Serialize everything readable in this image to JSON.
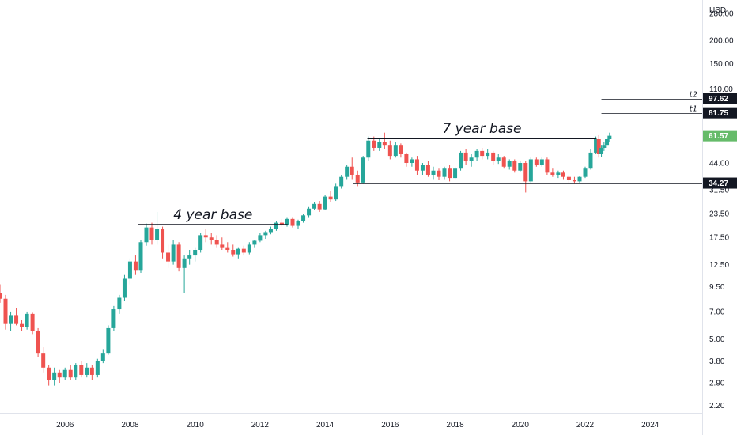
{
  "chart_data": {
    "type": "candlestick",
    "currency": "USD",
    "scale": "log",
    "ylim": [
      2.0,
      330.0
    ],
    "xlim": [
      2004.0,
      2025.6
    ],
    "y_ticks": [
      {
        "label": "280.00",
        "value": 280
      },
      {
        "label": "200.00",
        "value": 200
      },
      {
        "label": "150.00",
        "value": 150
      },
      {
        "label": "110.00",
        "value": 110
      },
      {
        "label": "44.00",
        "value": 44
      },
      {
        "label": "31.50",
        "value": 31.5
      },
      {
        "label": "23.50",
        "value": 23.5
      },
      {
        "label": "17.50",
        "value": 17.5
      },
      {
        "label": "12.50",
        "value": 12.5
      },
      {
        "label": "9.50",
        "value": 9.5
      },
      {
        "label": "7.00",
        "value": 7.0
      },
      {
        "label": "5.00",
        "value": 5.0
      },
      {
        "label": "3.80",
        "value": 3.8
      },
      {
        "label": "2.90",
        "value": 2.9
      },
      {
        "label": "2.20",
        "value": 2.2
      }
    ],
    "x_ticks": [
      {
        "label": "2006",
        "value": 2006
      },
      {
        "label": "2008",
        "value": 2008
      },
      {
        "label": "2010",
        "value": 2010
      },
      {
        "label": "2012",
        "value": 2012
      },
      {
        "label": "2014",
        "value": 2014
      },
      {
        "label": "2016",
        "value": 2016
      },
      {
        "label": "2018",
        "value": 2018
      },
      {
        "label": "2020",
        "value": 2020
      },
      {
        "label": "2022",
        "value": 2022
      },
      {
        "label": "2024",
        "value": 2024
      }
    ],
    "colors": {
      "up": "#26a69a",
      "down": "#ef5350",
      "last_price_tag": "#66bb6a",
      "level_tag": "#131722"
    },
    "price_tags": [
      {
        "label": "97.62",
        "value": 97.62,
        "kind": "level"
      },
      {
        "label": "81.75",
        "value": 81.75,
        "kind": "level"
      },
      {
        "label": "61.57",
        "value": 61.57,
        "kind": "last"
      },
      {
        "label": "34.27",
        "value": 34.27,
        "kind": "level"
      }
    ],
    "levels": [
      {
        "name": "t2",
        "value": 97.62,
        "x_start": 2022.5,
        "line": "thin"
      },
      {
        "name": "t1",
        "value": 81.75,
        "x_start": 2022.5,
        "line": "thin"
      },
      {
        "name": "",
        "value": 34.27,
        "x_start": 2014.85,
        "line": "thin"
      }
    ],
    "bases": [
      {
        "label": "4 year base",
        "value": 20.5,
        "x_start": 2008.25,
        "x_end": 2012.85
      },
      {
        "label": "7 year base",
        "value": 59.5,
        "x_start": 2015.3,
        "x_end": 2022.35
      }
    ],
    "candles": [
      {
        "t": 2004.0,
        "o": 8.8,
        "h": 9.8,
        "l": 7.8,
        "c": 8.2
      },
      {
        "t": 2004.17,
        "o": 8.2,
        "h": 8.6,
        "l": 5.6,
        "c": 6.0
      },
      {
        "t": 2004.33,
        "o": 6.0,
        "h": 7.0,
        "l": 5.5,
        "c": 6.7
      },
      {
        "t": 2004.5,
        "o": 6.7,
        "h": 7.3,
        "l": 5.9,
        "c": 6.0
      },
      {
        "t": 2004.67,
        "o": 6.0,
        "h": 6.3,
        "l": 5.5,
        "c": 5.8
      },
      {
        "t": 2004.83,
        "o": 5.8,
        "h": 7.0,
        "l": 5.6,
        "c": 6.8
      },
      {
        "t": 2005.0,
        "o": 6.8,
        "h": 6.9,
        "l": 5.3,
        "c": 5.5
      },
      {
        "t": 2005.17,
        "o": 5.5,
        "h": 5.7,
        "l": 4.0,
        "c": 4.2
      },
      {
        "t": 2005.33,
        "o": 4.2,
        "h": 4.5,
        "l": 3.3,
        "c": 3.5
      },
      {
        "t": 2005.5,
        "o": 3.5,
        "h": 3.6,
        "l": 2.8,
        "c": 3.0
      },
      {
        "t": 2005.67,
        "o": 3.0,
        "h": 3.5,
        "l": 2.8,
        "c": 3.3
      },
      {
        "t": 2005.83,
        "o": 3.3,
        "h": 3.4,
        "l": 2.9,
        "c": 3.1
      },
      {
        "t": 2006.0,
        "o": 3.1,
        "h": 3.5,
        "l": 3.0,
        "c": 3.4
      },
      {
        "t": 2006.17,
        "o": 3.4,
        "h": 3.6,
        "l": 3.0,
        "c": 3.1
      },
      {
        "t": 2006.33,
        "o": 3.1,
        "h": 3.7,
        "l": 3.0,
        "c": 3.6
      },
      {
        "t": 2006.5,
        "o": 3.6,
        "h": 3.8,
        "l": 3.1,
        "c": 3.2
      },
      {
        "t": 2006.67,
        "o": 3.2,
        "h": 3.7,
        "l": 3.1,
        "c": 3.5
      },
      {
        "t": 2006.83,
        "o": 3.5,
        "h": 3.6,
        "l": 3.0,
        "c": 3.2
      },
      {
        "t": 2007.0,
        "o": 3.2,
        "h": 3.9,
        "l": 3.1,
        "c": 3.8
      },
      {
        "t": 2007.17,
        "o": 3.8,
        "h": 4.4,
        "l": 3.7,
        "c": 4.2
      },
      {
        "t": 2007.33,
        "o": 4.2,
        "h": 5.9,
        "l": 4.1,
        "c": 5.7
      },
      {
        "t": 2007.5,
        "o": 5.7,
        "h": 7.5,
        "l": 5.5,
        "c": 7.2
      },
      {
        "t": 2007.67,
        "o": 7.2,
        "h": 8.6,
        "l": 6.8,
        "c": 8.3
      },
      {
        "t": 2007.83,
        "o": 8.3,
        "h": 11.0,
        "l": 8.0,
        "c": 10.5
      },
      {
        "t": 2008.0,
        "o": 10.5,
        "h": 13.5,
        "l": 9.8,
        "c": 13.0
      },
      {
        "t": 2008.17,
        "o": 13.0,
        "h": 14.0,
        "l": 11.0,
        "c": 11.6
      },
      {
        "t": 2008.33,
        "o": 11.6,
        "h": 17.0,
        "l": 11.3,
        "c": 16.5
      },
      {
        "t": 2008.5,
        "o": 16.5,
        "h": 20.8,
        "l": 15.8,
        "c": 19.8
      },
      {
        "t": 2008.67,
        "o": 19.8,
        "h": 21.0,
        "l": 16.0,
        "c": 17.0
      },
      {
        "t": 2008.83,
        "o": 17.0,
        "h": 24.0,
        "l": 16.0,
        "c": 19.5
      },
      {
        "t": 2009.0,
        "o": 19.5,
        "h": 20.0,
        "l": 13.5,
        "c": 14.5
      },
      {
        "t": 2009.17,
        "o": 14.5,
        "h": 16.0,
        "l": 12.0,
        "c": 13.0
      },
      {
        "t": 2009.33,
        "o": 13.0,
        "h": 17.0,
        "l": 12.5,
        "c": 16.0
      },
      {
        "t": 2009.5,
        "o": 16.0,
        "h": 16.5,
        "l": 11.5,
        "c": 12.0
      },
      {
        "t": 2009.67,
        "o": 12.0,
        "h": 14.0,
        "l": 8.8,
        "c": 13.5
      },
      {
        "t": 2009.83,
        "o": 13.5,
        "h": 15.0,
        "l": 12.5,
        "c": 14.0
      },
      {
        "t": 2010.0,
        "o": 14.0,
        "h": 15.5,
        "l": 13.0,
        "c": 15.0
      },
      {
        "t": 2010.17,
        "o": 15.0,
        "h": 18.5,
        "l": 14.5,
        "c": 18.0
      },
      {
        "t": 2010.33,
        "o": 18.0,
        "h": 19.5,
        "l": 16.5,
        "c": 17.5
      },
      {
        "t": 2010.5,
        "o": 17.5,
        "h": 18.5,
        "l": 16.0,
        "c": 17.0
      },
      {
        "t": 2010.67,
        "o": 17.0,
        "h": 18.0,
        "l": 15.5,
        "c": 16.0
      },
      {
        "t": 2010.83,
        "o": 16.0,
        "h": 17.5,
        "l": 15.0,
        "c": 15.5
      },
      {
        "t": 2011.0,
        "o": 15.5,
        "h": 16.5,
        "l": 14.5,
        "c": 15.0
      },
      {
        "t": 2011.17,
        "o": 15.0,
        "h": 16.0,
        "l": 13.8,
        "c": 14.2
      },
      {
        "t": 2011.33,
        "o": 14.2,
        "h": 15.5,
        "l": 13.5,
        "c": 15.2
      },
      {
        "t": 2011.5,
        "o": 15.2,
        "h": 15.8,
        "l": 14.0,
        "c": 14.5
      },
      {
        "t": 2011.67,
        "o": 14.5,
        "h": 16.5,
        "l": 14.2,
        "c": 16.0
      },
      {
        "t": 2011.83,
        "o": 16.0,
        "h": 17.0,
        "l": 15.5,
        "c": 16.8
      },
      {
        "t": 2012.0,
        "o": 16.8,
        "h": 18.5,
        "l": 16.5,
        "c": 18.0
      },
      {
        "t": 2012.17,
        "o": 18.0,
        "h": 19.0,
        "l": 17.2,
        "c": 18.7
      },
      {
        "t": 2012.33,
        "o": 18.7,
        "h": 20.0,
        "l": 18.2,
        "c": 19.5
      },
      {
        "t": 2012.5,
        "o": 19.5,
        "h": 21.5,
        "l": 19.0,
        "c": 21.0
      },
      {
        "t": 2012.67,
        "o": 21.0,
        "h": 22.0,
        "l": 20.0,
        "c": 20.5
      },
      {
        "t": 2012.83,
        "o": 20.5,
        "h": 22.5,
        "l": 20.0,
        "c": 22.0
      },
      {
        "t": 2013.0,
        "o": 22.0,
        "h": 22.5,
        "l": 19.8,
        "c": 20.2
      },
      {
        "t": 2013.17,
        "o": 20.2,
        "h": 21.8,
        "l": 19.5,
        "c": 21.5
      },
      {
        "t": 2013.33,
        "o": 21.5,
        "h": 23.5,
        "l": 21.0,
        "c": 23.0
      },
      {
        "t": 2013.5,
        "o": 23.0,
        "h": 25.5,
        "l": 22.5,
        "c": 25.0
      },
      {
        "t": 2013.67,
        "o": 25.0,
        "h": 27.0,
        "l": 24.5,
        "c": 26.5
      },
      {
        "t": 2013.83,
        "o": 26.5,
        "h": 27.5,
        "l": 24.0,
        "c": 24.8
      },
      {
        "t": 2014.0,
        "o": 24.8,
        "h": 29.5,
        "l": 24.5,
        "c": 29.0
      },
      {
        "t": 2014.17,
        "o": 29.0,
        "h": 31.0,
        "l": 27.0,
        "c": 28.0
      },
      {
        "t": 2014.33,
        "o": 28.0,
        "h": 34.0,
        "l": 27.5,
        "c": 33.0
      },
      {
        "t": 2014.5,
        "o": 33.0,
        "h": 38.0,
        "l": 32.0,
        "c": 37.0
      },
      {
        "t": 2014.67,
        "o": 37.0,
        "h": 43.0,
        "l": 36.0,
        "c": 42.0
      },
      {
        "t": 2014.83,
        "o": 42.0,
        "h": 47.0,
        "l": 36.0,
        "c": 38.0
      },
      {
        "t": 2015.0,
        "o": 38.0,
        "h": 40.0,
        "l": 33.0,
        "c": 34.5
      },
      {
        "t": 2015.17,
        "o": 34.5,
        "h": 48.0,
        "l": 34.0,
        "c": 47.0
      },
      {
        "t": 2015.33,
        "o": 47.0,
        "h": 61.0,
        "l": 45.0,
        "c": 58.0
      },
      {
        "t": 2015.5,
        "o": 58.0,
        "h": 61.0,
        "l": 51.0,
        "c": 53.0
      },
      {
        "t": 2015.67,
        "o": 53.0,
        "h": 60.0,
        "l": 51.0,
        "c": 57.0
      },
      {
        "t": 2015.83,
        "o": 57.0,
        "h": 64.0,
        "l": 52.0,
        "c": 55.0
      },
      {
        "t": 2016.0,
        "o": 55.0,
        "h": 58.0,
        "l": 46.0,
        "c": 48.0
      },
      {
        "t": 2016.17,
        "o": 48.0,
        "h": 57.0,
        "l": 47.0,
        "c": 55.0
      },
      {
        "t": 2016.33,
        "o": 55.0,
        "h": 56.0,
        "l": 47.0,
        "c": 49.0
      },
      {
        "t": 2016.5,
        "o": 49.0,
        "h": 50.0,
        "l": 42.0,
        "c": 44.0
      },
      {
        "t": 2016.67,
        "o": 44.0,
        "h": 47.0,
        "l": 42.0,
        "c": 46.0
      },
      {
        "t": 2016.83,
        "o": 46.0,
        "h": 48.0,
        "l": 38.0,
        "c": 40.0
      },
      {
        "t": 2017.0,
        "o": 40.0,
        "h": 44.0,
        "l": 38.0,
        "c": 43.0
      },
      {
        "t": 2017.17,
        "o": 43.0,
        "h": 45.0,
        "l": 37.0,
        "c": 38.0
      },
      {
        "t": 2017.33,
        "o": 38.0,
        "h": 42.0,
        "l": 36.0,
        "c": 40.0
      },
      {
        "t": 2017.5,
        "o": 40.0,
        "h": 41.0,
        "l": 35.5,
        "c": 37.0
      },
      {
        "t": 2017.67,
        "o": 37.0,
        "h": 42.0,
        "l": 36.0,
        "c": 41.0
      },
      {
        "t": 2017.83,
        "o": 41.0,
        "h": 43.0,
        "l": 35.0,
        "c": 36.5
      },
      {
        "t": 2018.0,
        "o": 36.5,
        "h": 42.0,
        "l": 36.0,
        "c": 41.0
      },
      {
        "t": 2018.17,
        "o": 41.0,
        "h": 51.0,
        "l": 40.0,
        "c": 50.0
      },
      {
        "t": 2018.33,
        "o": 50.0,
        "h": 52.0,
        "l": 43.0,
        "c": 45.0
      },
      {
        "t": 2018.5,
        "o": 45.0,
        "h": 49.0,
        "l": 42.0,
        "c": 47.0
      },
      {
        "t": 2018.67,
        "o": 47.0,
        "h": 52.0,
        "l": 45.0,
        "c": 51.0
      },
      {
        "t": 2018.83,
        "o": 51.0,
        "h": 53.0,
        "l": 46.0,
        "c": 48.0
      },
      {
        "t": 2019.0,
        "o": 48.0,
        "h": 52.0,
        "l": 46.0,
        "c": 50.0
      },
      {
        "t": 2019.17,
        "o": 50.0,
        "h": 51.0,
        "l": 43.0,
        "c": 45.0
      },
      {
        "t": 2019.33,
        "o": 45.0,
        "h": 49.0,
        "l": 43.5,
        "c": 47.0
      },
      {
        "t": 2019.5,
        "o": 47.0,
        "h": 48.0,
        "l": 41.0,
        "c": 42.0
      },
      {
        "t": 2019.67,
        "o": 42.0,
        "h": 46.0,
        "l": 40.5,
        "c": 45.0
      },
      {
        "t": 2019.83,
        "o": 45.0,
        "h": 46.0,
        "l": 39.0,
        "c": 40.0
      },
      {
        "t": 2020.0,
        "o": 40.0,
        "h": 45.0,
        "l": 39.5,
        "c": 44.0
      },
      {
        "t": 2020.17,
        "o": 44.0,
        "h": 45.0,
        "l": 30.5,
        "c": 35.0
      },
      {
        "t": 2020.33,
        "o": 35.0,
        "h": 47.0,
        "l": 34.5,
        "c": 46.0
      },
      {
        "t": 2020.5,
        "o": 46.0,
        "h": 47.0,
        "l": 42.0,
        "c": 43.0
      },
      {
        "t": 2020.67,
        "o": 43.0,
        "h": 47.0,
        "l": 42.0,
        "c": 46.0
      },
      {
        "t": 2020.83,
        "o": 46.0,
        "h": 47.0,
        "l": 38.0,
        "c": 39.0
      },
      {
        "t": 2021.0,
        "o": 39.0,
        "h": 41.0,
        "l": 37.0,
        "c": 38.0
      },
      {
        "t": 2021.17,
        "o": 38.0,
        "h": 40.0,
        "l": 36.5,
        "c": 39.0
      },
      {
        "t": 2021.33,
        "o": 39.0,
        "h": 40.0,
        "l": 36.0,
        "c": 37.0
      },
      {
        "t": 2021.5,
        "o": 37.0,
        "h": 38.0,
        "l": 34.5,
        "c": 35.5
      },
      {
        "t": 2021.67,
        "o": 35.5,
        "h": 37.0,
        "l": 34.0,
        "c": 35.0
      },
      {
        "t": 2021.83,
        "o": 35.0,
        "h": 37.5,
        "l": 34.5,
        "c": 37.0
      },
      {
        "t": 2022.0,
        "o": 37.0,
        "h": 42.0,
        "l": 36.5,
        "c": 41.0
      },
      {
        "t": 2022.17,
        "o": 41.0,
        "h": 52.0,
        "l": 40.5,
        "c": 50.0
      },
      {
        "t": 2022.33,
        "o": 50.0,
        "h": 61.0,
        "l": 49.0,
        "c": 59.0
      },
      {
        "t": 2022.42,
        "o": 59.0,
        "h": 62.0,
        "l": 47.0,
        "c": 49.0
      },
      {
        "t": 2022.5,
        "o": 49.0,
        "h": 55.0,
        "l": 47.5,
        "c": 53.0
      },
      {
        "t": 2022.58,
        "o": 53.0,
        "h": 57.0,
        "l": 51.0,
        "c": 55.0
      },
      {
        "t": 2022.67,
        "o": 55.0,
        "h": 60.0,
        "l": 54.0,
        "c": 59.0
      },
      {
        "t": 2022.75,
        "o": 59.0,
        "h": 64.0,
        "l": 57.0,
        "c": 61.57
      }
    ]
  }
}
